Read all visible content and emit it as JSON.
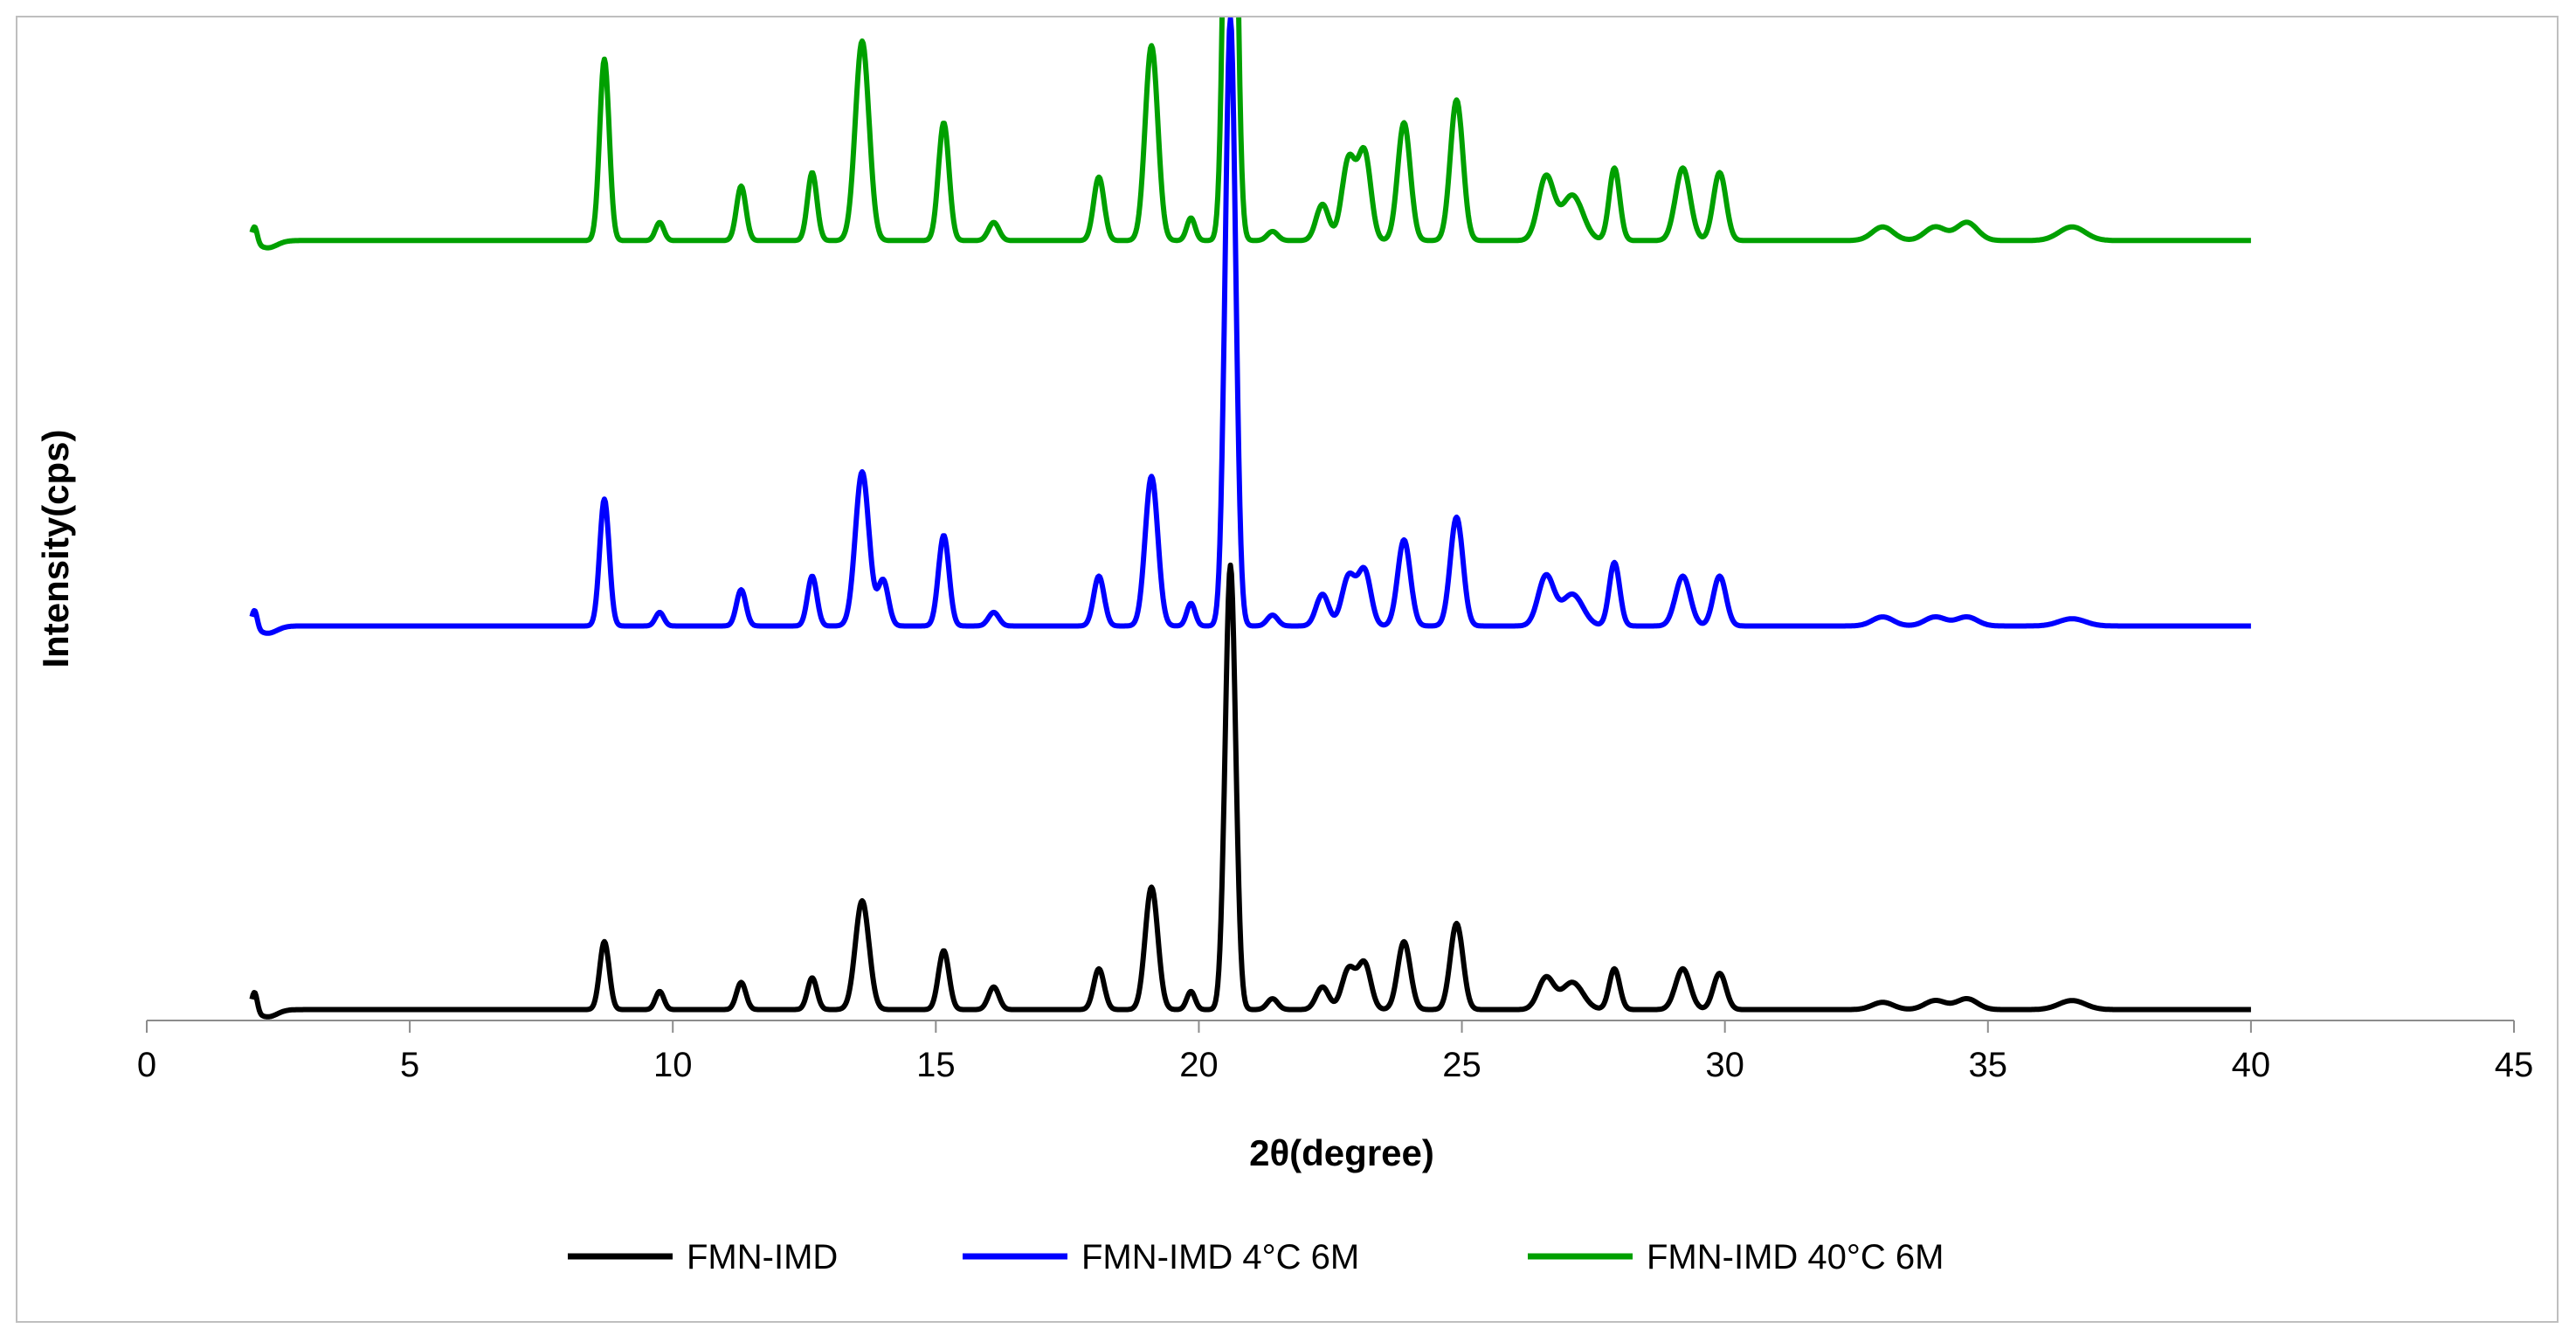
{
  "chart_data": {
    "type": "line",
    "title": "",
    "xlabel": "2θ(degree)",
    "ylabel": "Intensity(cps)",
    "xlim": [
      0,
      45
    ],
    "x_ticks": [
      0,
      5,
      10,
      15,
      20,
      25,
      30,
      35,
      40,
      45
    ],
    "y_tick_labels_shown": false,
    "ylim": [
      0,
      1000
    ],
    "grid": false,
    "legend_position": "bottom",
    "x_range": [
      2,
      40
    ],
    "series": [
      {
        "name": "FMN-IMD",
        "color": "#000000",
        "baseline": 12,
        "peaks": [
          [
            2.05,
            22,
            0.05
          ],
          [
            8.7,
            75,
            0.09
          ],
          [
            9.75,
            20,
            0.08
          ],
          [
            11.3,
            30,
            0.09
          ],
          [
            12.65,
            35,
            0.09
          ],
          [
            13.6,
            120,
            0.13
          ],
          [
            15.15,
            65,
            0.1
          ],
          [
            16.1,
            25,
            0.1
          ],
          [
            18.1,
            45,
            0.1
          ],
          [
            19.1,
            135,
            0.12
          ],
          [
            19.85,
            20,
            0.08
          ],
          [
            20.6,
            490,
            0.1
          ],
          [
            21.4,
            12,
            0.1
          ],
          [
            22.35,
            25,
            0.12
          ],
          [
            22.85,
            45,
            0.13
          ],
          [
            23.15,
            50,
            0.12
          ],
          [
            23.9,
            75,
            0.12
          ],
          [
            24.9,
            95,
            0.12
          ],
          [
            26.6,
            35,
            0.15
          ],
          [
            27.1,
            30,
            0.2
          ],
          [
            27.9,
            45,
            0.1
          ],
          [
            29.2,
            45,
            0.14
          ],
          [
            29.9,
            40,
            0.12
          ],
          [
            33.0,
            8,
            0.2
          ],
          [
            34.0,
            10,
            0.2
          ],
          [
            34.6,
            12,
            0.2
          ],
          [
            36.6,
            10,
            0.25
          ]
        ]
      },
      {
        "name": "FMN-IMD 4°C 6M",
        "color": "#0000ff",
        "baseline": 435,
        "peaks": [
          [
            2.05,
            20,
            0.05
          ],
          [
            8.7,
            140,
            0.09
          ],
          [
            9.75,
            15,
            0.08
          ],
          [
            11.3,
            40,
            0.09
          ],
          [
            12.65,
            55,
            0.09
          ],
          [
            13.6,
            170,
            0.13
          ],
          [
            14.0,
            50,
            0.1
          ],
          [
            15.15,
            100,
            0.1
          ],
          [
            16.1,
            15,
            0.1
          ],
          [
            18.1,
            55,
            0.1
          ],
          [
            19.1,
            165,
            0.12
          ],
          [
            19.85,
            25,
            0.08
          ],
          [
            20.6,
            670,
            0.1
          ],
          [
            21.4,
            12,
            0.1
          ],
          [
            22.35,
            35,
            0.12
          ],
          [
            22.85,
            55,
            0.13
          ],
          [
            23.15,
            60,
            0.12
          ],
          [
            23.9,
            95,
            0.12
          ],
          [
            24.9,
            120,
            0.12
          ],
          [
            26.6,
            55,
            0.15
          ],
          [
            27.1,
            35,
            0.2
          ],
          [
            27.9,
            70,
            0.1
          ],
          [
            29.2,
            55,
            0.14
          ],
          [
            29.9,
            55,
            0.12
          ],
          [
            33.0,
            10,
            0.2
          ],
          [
            34.0,
            10,
            0.2
          ],
          [
            34.6,
            10,
            0.2
          ],
          [
            36.6,
            8,
            0.25
          ]
        ]
      },
      {
        "name": "FMN-IMD 40°C 6M",
        "color": "#00a000",
        "baseline": 860,
        "peaks": [
          [
            2.05,
            18,
            0.05
          ],
          [
            8.7,
            200,
            0.09
          ],
          [
            9.75,
            20,
            0.08
          ],
          [
            11.3,
            60,
            0.09
          ],
          [
            12.65,
            75,
            0.09
          ],
          [
            13.6,
            220,
            0.13
          ],
          [
            15.15,
            130,
            0.1
          ],
          [
            16.1,
            20,
            0.1
          ],
          [
            18.1,
            70,
            0.1
          ],
          [
            19.1,
            215,
            0.12
          ],
          [
            19.85,
            25,
            0.08
          ],
          [
            20.6,
            860,
            0.1
          ],
          [
            21.4,
            10,
            0.1
          ],
          [
            22.35,
            40,
            0.12
          ],
          [
            22.85,
            90,
            0.13
          ],
          [
            23.15,
            95,
            0.12
          ],
          [
            23.9,
            130,
            0.12
          ],
          [
            24.9,
            155,
            0.12
          ],
          [
            26.6,
            70,
            0.15
          ],
          [
            27.1,
            50,
            0.2
          ],
          [
            27.9,
            80,
            0.1
          ],
          [
            29.2,
            80,
            0.14
          ],
          [
            29.9,
            75,
            0.12
          ],
          [
            33.0,
            15,
            0.2
          ],
          [
            34.0,
            15,
            0.2
          ],
          [
            34.6,
            20,
            0.2
          ],
          [
            36.6,
            15,
            0.25
          ]
        ]
      }
    ]
  }
}
